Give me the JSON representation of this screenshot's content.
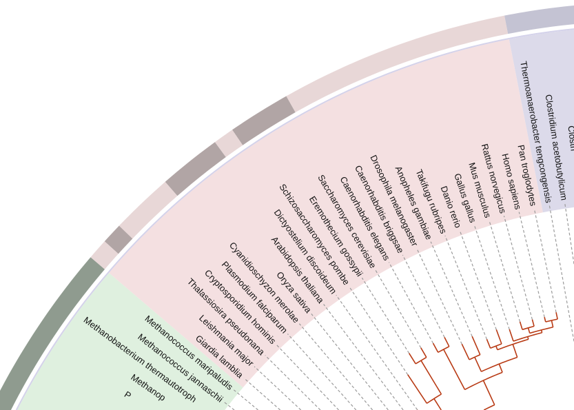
{
  "diagram": {
    "type": "circular-phylogenetic-tree",
    "branch_color": "#b83a14",
    "guide_line_color": "#9a9a9a",
    "leaves": [
      {
        "label": "Clostri",
        "partial": true
      },
      {
        "label": "Clostridium acetobutylicum"
      },
      {
        "label": "Thermoanaerobacter tengcongensis"
      },
      {
        "label": "Pan troglodytes"
      },
      {
        "label": "Homo sapiens"
      },
      {
        "label": "Rattus norvegicus"
      },
      {
        "label": "Mus musculus"
      },
      {
        "label": "Gallus gallus"
      },
      {
        "label": "Danio rerio"
      },
      {
        "label": "Takifugu rubripes"
      },
      {
        "label": "Anopheles gambiae"
      },
      {
        "label": "Drosophila melanogaster"
      },
      {
        "label": "Caenorhabditis briggsae"
      },
      {
        "label": "Caenorhabditis elegans"
      },
      {
        "label": "Saccharomyces cerevisiae"
      },
      {
        "label": "Eremothecium gossypii"
      },
      {
        "label": "Schizosaccharomyces pombe"
      },
      {
        "label": "Dictyostelium discoideum"
      },
      {
        "label": "Arabidopsis thaliana"
      },
      {
        "label": "Oryza sativa"
      },
      {
        "label": "Cyanidioschyzon merolae"
      },
      {
        "label": "Plasmodium falciparum"
      },
      {
        "label": "Cryptosporidium hominis"
      },
      {
        "label": "Thalassiosira pseudonana"
      },
      {
        "label": "Leishmania major"
      },
      {
        "label": "Giardia lamblia"
      },
      {
        "label": "Methanococcus maripaludis"
      },
      {
        "label": "Methanococcus jannaschii"
      },
      {
        "label": "Methanobacterium thermautotroph",
        "partial": true
      },
      {
        "label": "Methanop",
        "partial": true
      },
      {
        "label": "P",
        "partial": true
      }
    ],
    "clade_backgrounds": [
      {
        "from": 0,
        "to": 2,
        "color": "#dcdaea",
        "continues": "before"
      },
      {
        "from": 3,
        "to": 25,
        "color": "#f4e0e1"
      },
      {
        "from": 26,
        "to": 30,
        "color": "#dff0df",
        "continues": "after"
      }
    ],
    "outer_ring": [
      {
        "from": 0,
        "to": 2,
        "color": "#c4c3d3",
        "continues": "before"
      },
      {
        "from": 3,
        "to": 13,
        "color": "#e8d7d7"
      },
      {
        "from": 14,
        "to": 16,
        "color": "#b1a5a5"
      },
      {
        "from": 17,
        "to": 17,
        "color": "#e8d7d7"
      },
      {
        "from": 18,
        "to": 20,
        "color": "#b1a5a5"
      },
      {
        "from": 21,
        "to": 23,
        "color": "#e8d7d7"
      },
      {
        "from": 24,
        "to": 24,
        "color": "#b1a5a5"
      },
      {
        "from": 25,
        "to": 25,
        "color": "#e8d7d7"
      },
      {
        "from": 26,
        "to": 30,
        "color": "#8f9b8f",
        "continues": "after"
      }
    ],
    "tree": {
      "d": 2.0,
      "children": [
        {
          "d": 4.6,
          "children": [
            {
              "d": 5.0,
              "children": [
                {
                  "leaf": 0,
                  "d": 5.3
                },
                {
                  "leaf": 1,
                  "d": 5.3
                }
              ]
            },
            {
              "leaf": 2,
              "d": 5.2
            }
          ]
        },
        {
          "d": 3.8,
          "children": [
            {
              "d": 4.2,
              "children": [
                {
                  "d": 4.5,
                  "children": [
                    {
                      "d": 4.7,
                      "children": [
                        {
                          "d": 4.9,
                          "children": [
                            {
                              "d": 5.2,
                              "children": [
                                {
                                  "d": 5.59,
                                  "children": [
                                    {
                                      "d": 5.72,
                                      "children": [
                                        {
                                          "d": 5.92,
                                          "children": [
                                            {
                                              "d": 5.96,
                                              "children": [
                                                {
                                                  "d": 6.0,
                                                  "children": [
                                                    {
                                                      "d": 6.1,
                                                      "children": [
                                                        {
                                                          "leaf": 3,
                                                          "d": 6.2
                                                        },
                                                        {
                                                          "leaf": 4,
                                                          "d": 6.17
                                                        }
                                                      ]
                                                    },
                                                    {
                                                      "d": 6.08,
                                                      "children": [
                                                        {
                                                          "leaf": 5,
                                                          "d": 6.18
                                                        },
                                                        {
                                                          "leaf": 6,
                                                          "d": 6.2
                                                        }
                                                      ]
                                                    }
                                                  ]
                                                },
                                                {
                                                  "leaf": 7,
                                                  "d": 6.14
                                                }
                                              ]
                                            },
                                            {
                                              "d": 5.98,
                                              "children": [
                                                {
                                                  "leaf": 8,
                                                  "d": 6.2
                                                },
                                                {
                                                  "leaf": 9,
                                                  "d": 6.12
                                                }
                                              ]
                                            }
                                          ]
                                        },
                                        {
                                          "d": 5.95,
                                          "children": [
                                            {
                                              "leaf": 10,
                                              "d": 6.24
                                            },
                                            {
                                              "leaf": 11,
                                              "d": 6.2
                                            }
                                          ]
                                        }
                                      ]
                                    },
                                    {
                                      "d": 6.25,
                                      "children": [
                                        {
                                          "leaf": 12,
                                          "d": 6.4
                                        },
                                        {
                                          "leaf": 13,
                                          "d": 6.4
                                        }
                                      ]
                                    }
                                  ]
                                },
                                {
                                  "d": 5.7,
                                  "children": [
                                    {
                                      "d": 6.27,
                                      "children": [
                                        {
                                          "leaf": 14,
                                          "d": 6.43
                                        },
                                        {
                                          "leaf": 15,
                                          "d": 6.45
                                        }
                                      ]
                                    },
                                    {
                                      "leaf": 16,
                                      "d": 6.2
                                    }
                                  ]
                                }
                              ]
                            },
                            {
                              "leaf": 17,
                              "d": 5.7
                            }
                          ]
                        },
                        {
                          "d": 5.1,
                          "children": [
                            {
                              "d": 5.5,
                              "children": [
                                {
                                  "leaf": 18,
                                  "d": 5.8
                                },
                                {
                                  "leaf": 19,
                                  "d": 5.8
                                }
                              ]
                            },
                            {
                              "leaf": 20,
                              "d": 5.7
                            }
                          ]
                        }
                      ]
                    },
                    {
                      "d": 4.9,
                      "children": [
                        {
                          "d": 5.2,
                          "children": [
                            {
                              "leaf": 21,
                              "d": 5.6
                            },
                            {
                              "leaf": 22,
                              "d": 5.7
                            }
                          ]
                        },
                        {
                          "leaf": 23,
                          "d": 5.6
                        }
                      ]
                    }
                  ]
                },
                {
                  "leaf": 24,
                  "d": 5.6
                }
              ]
            },
            {
              "leaf": 25,
              "d": 5.5
            }
          ]
        },
        {
          "d": 4.0,
          "children": [
            {
              "d": 5.0,
              "children": [
                {
                  "leaf": 26,
                  "d": 5.5
                },
                {
                  "leaf": 27,
                  "d": 5.5
                }
              ]
            },
            {
              "leaf": 28,
              "d": 5.3
            },
            {
              "leaf": 29,
              "d": 5.2
            },
            {
              "leaf": 30,
              "d": 5.4
            }
          ]
        }
      ]
    }
  }
}
